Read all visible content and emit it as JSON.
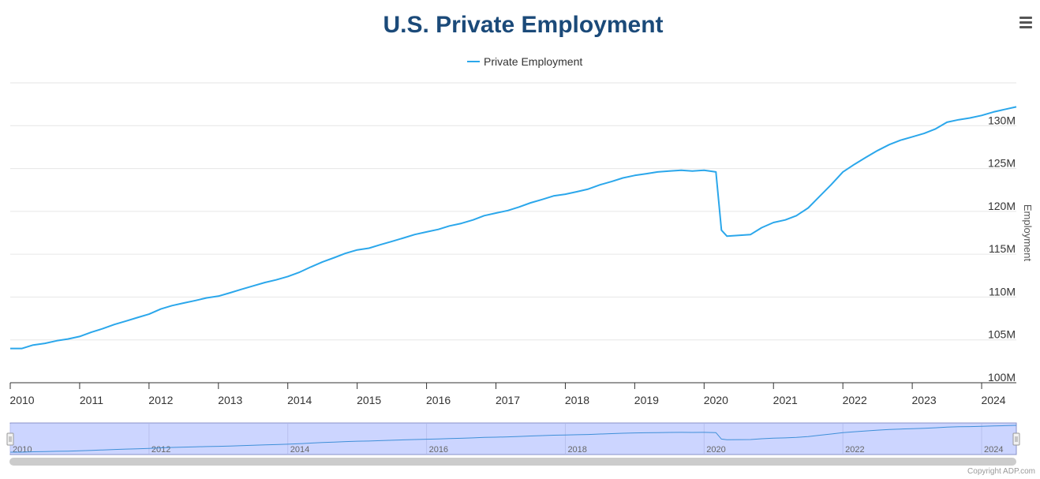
{
  "chart_data": {
    "type": "line",
    "title": "U.S. Private Employment",
    "ylabel": "Employment",
    "legend": "top-center",
    "grid": true,
    "ylim": [
      100,
      135
    ],
    "xlim": [
      2010,
      2024.5
    ],
    "y_ticks": [
      "100M",
      "105M",
      "110M",
      "115M",
      "120M",
      "125M",
      "130M"
    ],
    "x_ticks": [
      "2010",
      "2011",
      "2012",
      "2013",
      "2014",
      "2015",
      "2016",
      "2017",
      "2018",
      "2019",
      "2020",
      "2021",
      "2022",
      "2023",
      "2024"
    ],
    "navigator_ticks": [
      "2010",
      "2012",
      "2014",
      "2016",
      "2018",
      "2020",
      "2022",
      "2024"
    ],
    "series": [
      {
        "name": "Private Employment",
        "color": "#2ba7eb",
        "points": [
          [
            2010.0,
            104.0
          ],
          [
            2010.17,
            104.0
          ],
          [
            2010.33,
            104.4
          ],
          [
            2010.5,
            104.6
          ],
          [
            2010.67,
            104.9
          ],
          [
            2010.83,
            105.1
          ],
          [
            2011.0,
            105.4
          ],
          [
            2011.17,
            105.9
          ],
          [
            2011.33,
            106.3
          ],
          [
            2011.5,
            106.8
          ],
          [
            2011.67,
            107.2
          ],
          [
            2011.83,
            107.6
          ],
          [
            2012.0,
            108.0
          ],
          [
            2012.17,
            108.6
          ],
          [
            2012.33,
            109.0
          ],
          [
            2012.5,
            109.3
          ],
          [
            2012.67,
            109.6
          ],
          [
            2012.83,
            109.9
          ],
          [
            2013.0,
            110.1
          ],
          [
            2013.17,
            110.5
          ],
          [
            2013.33,
            110.9
          ],
          [
            2013.5,
            111.3
          ],
          [
            2013.67,
            111.7
          ],
          [
            2013.83,
            112.0
          ],
          [
            2014.0,
            112.4
          ],
          [
            2014.17,
            112.9
          ],
          [
            2014.33,
            113.5
          ],
          [
            2014.5,
            114.1
          ],
          [
            2014.67,
            114.6
          ],
          [
            2014.83,
            115.1
          ],
          [
            2015.0,
            115.5
          ],
          [
            2015.17,
            115.7
          ],
          [
            2015.33,
            116.1
          ],
          [
            2015.5,
            116.5
          ],
          [
            2015.67,
            116.9
          ],
          [
            2015.83,
            117.3
          ],
          [
            2016.0,
            117.6
          ],
          [
            2016.17,
            117.9
          ],
          [
            2016.33,
            118.3
          ],
          [
            2016.5,
            118.6
          ],
          [
            2016.67,
            119.0
          ],
          [
            2016.83,
            119.5
          ],
          [
            2017.0,
            119.8
          ],
          [
            2017.17,
            120.1
          ],
          [
            2017.33,
            120.5
          ],
          [
            2017.5,
            121.0
          ],
          [
            2017.67,
            121.4
          ],
          [
            2017.83,
            121.8
          ],
          [
            2018.0,
            122.0
          ],
          [
            2018.17,
            122.3
          ],
          [
            2018.33,
            122.6
          ],
          [
            2018.5,
            123.1
          ],
          [
            2018.67,
            123.5
          ],
          [
            2018.83,
            123.9
          ],
          [
            2019.0,
            124.2
          ],
          [
            2019.17,
            124.4
          ],
          [
            2019.33,
            124.6
          ],
          [
            2019.5,
            124.7
          ],
          [
            2019.67,
            124.8
          ],
          [
            2019.83,
            124.7
          ],
          [
            2020.0,
            124.8
          ],
          [
            2020.17,
            124.6
          ],
          [
            2020.25,
            117.8
          ],
          [
            2020.33,
            117.1
          ],
          [
            2020.5,
            117.2
          ],
          [
            2020.67,
            117.3
          ],
          [
            2020.83,
            118.1
          ],
          [
            2021.0,
            118.7
          ],
          [
            2021.17,
            119.0
          ],
          [
            2021.33,
            119.5
          ],
          [
            2021.5,
            120.4
          ],
          [
            2021.67,
            121.8
          ],
          [
            2021.83,
            123.1
          ],
          [
            2022.0,
            124.6
          ],
          [
            2022.17,
            125.5
          ],
          [
            2022.33,
            126.3
          ],
          [
            2022.5,
            127.1
          ],
          [
            2022.67,
            127.8
          ],
          [
            2022.83,
            128.3
          ],
          [
            2023.0,
            128.7
          ],
          [
            2023.17,
            129.1
          ],
          [
            2023.33,
            129.6
          ],
          [
            2023.5,
            130.4
          ],
          [
            2023.67,
            130.7
          ],
          [
            2023.83,
            130.9
          ],
          [
            2024.0,
            131.2
          ],
          [
            2024.17,
            131.6
          ],
          [
            2024.33,
            131.9
          ],
          [
            2024.5,
            132.2
          ]
        ]
      }
    ]
  },
  "copyright": "Copyright ADP.com",
  "menu_icon": "hamburger-menu-icon"
}
